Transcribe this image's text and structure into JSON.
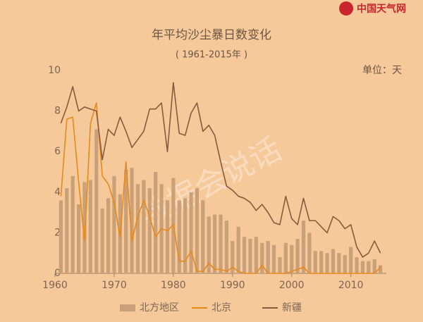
{
  "chart_data": {
    "type": "bar_line",
    "title": "年平均沙尘暴日数变化",
    "subtitle": "( 1961-2015年 )",
    "unit_label": "单位：天",
    "brand": "中国天气网",
    "watermark": "数据会说话",
    "x": [
      1961,
      1962,
      1963,
      1964,
      1965,
      1966,
      1967,
      1968,
      1969,
      1970,
      1971,
      1972,
      1973,
      1974,
      1975,
      1976,
      1977,
      1978,
      1979,
      1980,
      1981,
      1982,
      1983,
      1984,
      1985,
      1986,
      1987,
      1988,
      1989,
      1990,
      1991,
      1992,
      1993,
      1994,
      1995,
      1996,
      1997,
      1998,
      1999,
      2000,
      2001,
      2002,
      2003,
      2004,
      2005,
      2006,
      2007,
      2008,
      2009,
      2010,
      2011,
      2012,
      2013,
      2014,
      2015
    ],
    "series": [
      {
        "name": "北方地区",
        "kind": "bar",
        "color": "#c9a078",
        "values": [
          3.6,
          4.2,
          4.8,
          3.4,
          4.5,
          4.6,
          7.1,
          3.2,
          3.7,
          4.8,
          3.9,
          5.1,
          5.2,
          4.4,
          4.6,
          4.2,
          5.0,
          4.4,
          3.6,
          4.7,
          3.6,
          3.7,
          4.0,
          4.2,
          3.6,
          2.8,
          2.9,
          2.9,
          2.6,
          1.6,
          2.3,
          1.8,
          1.7,
          1.8,
          1.5,
          1.6,
          1.4,
          0.8,
          1.5,
          1.4,
          1.7,
          2.6,
          2.0,
          1.1,
          1.1,
          1.0,
          1.2,
          1.0,
          0.9,
          1.3,
          0.8,
          0.6,
          0.6,
          0.7,
          0.4
        ]
      },
      {
        "name": "北京",
        "kind": "line",
        "color": "#e8891c",
        "values": [
          3.8,
          7.6,
          7.7,
          4.5,
          1.6,
          7.4,
          8.4,
          4.8,
          4.4,
          3.5,
          1.8,
          5.5,
          1.6,
          2.8,
          3.6,
          2.8,
          1.8,
          2.2,
          2.1,
          2.4,
          0.6,
          0.6,
          1.1,
          0.1,
          0.1,
          0.5,
          0.2,
          0.2,
          0.1,
          0.3,
          0.1,
          0,
          0,
          0,
          0.4,
          0,
          0,
          0,
          0,
          0.1,
          0.2,
          0.3,
          0,
          0,
          0,
          0,
          0,
          0,
          0,
          0,
          0,
          0,
          0,
          0,
          0.3
        ]
      },
      {
        "name": "新疆",
        "kind": "line",
        "color": "#8a5a3e",
        "values": [
          7.4,
          8.2,
          9.2,
          8.0,
          8.2,
          8.1,
          8.0,
          5.6,
          7.1,
          6.8,
          7.7,
          7.0,
          6.2,
          6.6,
          7.0,
          8.1,
          8.1,
          8.4,
          6.0,
          9.4,
          6.9,
          6.8,
          7.9,
          8.4,
          7.0,
          7.3,
          6.8,
          5.5,
          4.3,
          4.1,
          3.8,
          3.7,
          3.5,
          3.1,
          3.4,
          3.0,
          2.5,
          2.4,
          3.8,
          2.7,
          2.4,
          3.7,
          2.6,
          2.6,
          2.3,
          2.0,
          2.8,
          2.6,
          2.2,
          2.4,
          1.3,
          0.8,
          1.0,
          1.6,
          1.0
        ]
      }
    ],
    "xlim": [
      1960,
      2016
    ],
    "xticks": [
      1960,
      1970,
      1980,
      1990,
      2000,
      2010
    ],
    "ylim": [
      0,
      10
    ],
    "yticks": [
      0,
      2,
      4,
      6,
      8,
      10
    ]
  }
}
